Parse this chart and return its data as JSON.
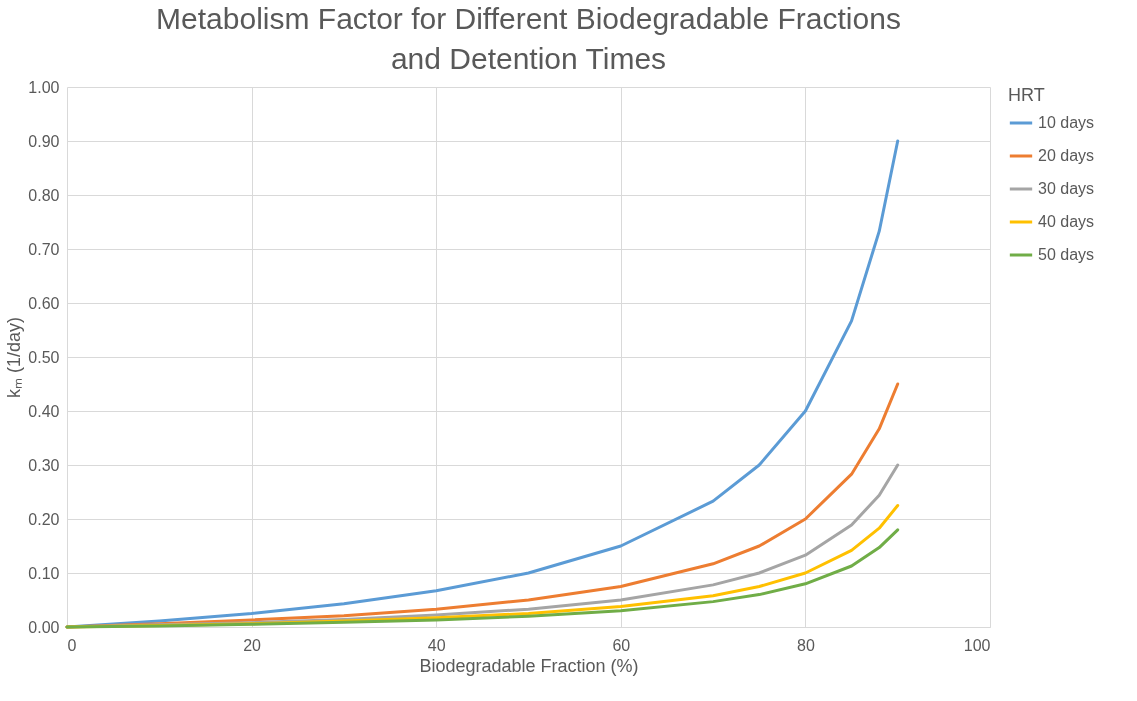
{
  "chart_data": {
    "type": "line",
    "title": "Metabolism Factor for Different Biodegradable Fractions and Detention Times",
    "xlabel": "Biodegradable Fraction (%)",
    "ylabel": "kₘ (1/day)",
    "legend_title": "HRT",
    "x": [
      0,
      10,
      20,
      30,
      40,
      50,
      60,
      70,
      75,
      80,
      85,
      88,
      90
    ],
    "series": [
      {
        "name": "10 days",
        "color": "#5b9bd5",
        "values": [
          0,
          0.011,
          0.025,
          0.043,
          0.067,
          0.1,
          0.15,
          0.233,
          0.3,
          0.4,
          0.567,
          0.733,
          0.9
        ]
      },
      {
        "name": "20 days",
        "color": "#ed7d31",
        "values": [
          0,
          0.006,
          0.013,
          0.021,
          0.033,
          0.05,
          0.075,
          0.117,
          0.15,
          0.2,
          0.283,
          0.367,
          0.45
        ]
      },
      {
        "name": "30 days",
        "color": "#a5a5a5",
        "values": [
          0,
          0.004,
          0.008,
          0.014,
          0.022,
          0.033,
          0.05,
          0.078,
          0.1,
          0.133,
          0.189,
          0.244,
          0.3
        ]
      },
      {
        "name": "40 days",
        "color": "#ffc000",
        "values": [
          0,
          0.003,
          0.006,
          0.011,
          0.017,
          0.025,
          0.038,
          0.058,
          0.075,
          0.1,
          0.142,
          0.183,
          0.225
        ]
      },
      {
        "name": "50 days",
        "color": "#70ad47",
        "values": [
          0,
          0.002,
          0.005,
          0.009,
          0.013,
          0.02,
          0.03,
          0.047,
          0.06,
          0.08,
          0.113,
          0.147,
          0.18
        ]
      }
    ],
    "xlim": [
      0,
      100
    ],
    "xticks": [
      0,
      20,
      40,
      60,
      80,
      100
    ],
    "ylim": [
      0,
      1
    ],
    "yticks": [
      {
        "value": 0,
        "label": "0.00"
      },
      {
        "value": 0.1,
        "label": "0.10"
      },
      {
        "value": 0.2,
        "label": "0.20"
      },
      {
        "value": 0.3,
        "label": "0.30"
      },
      {
        "value": 0.4,
        "label": "0.40"
      },
      {
        "value": 0.5,
        "label": "0.50"
      },
      {
        "value": 0.6,
        "label": "0.60"
      },
      {
        "value": 0.7,
        "label": "0.70"
      },
      {
        "value": 0.8,
        "label": "0.80"
      },
      {
        "value": 0.9,
        "label": "0.90"
      },
      {
        "value": 1,
        "label": "1.00"
      }
    ],
    "grid": true,
    "legend": "right",
    "marker": "none",
    "line_style": "solid"
  }
}
